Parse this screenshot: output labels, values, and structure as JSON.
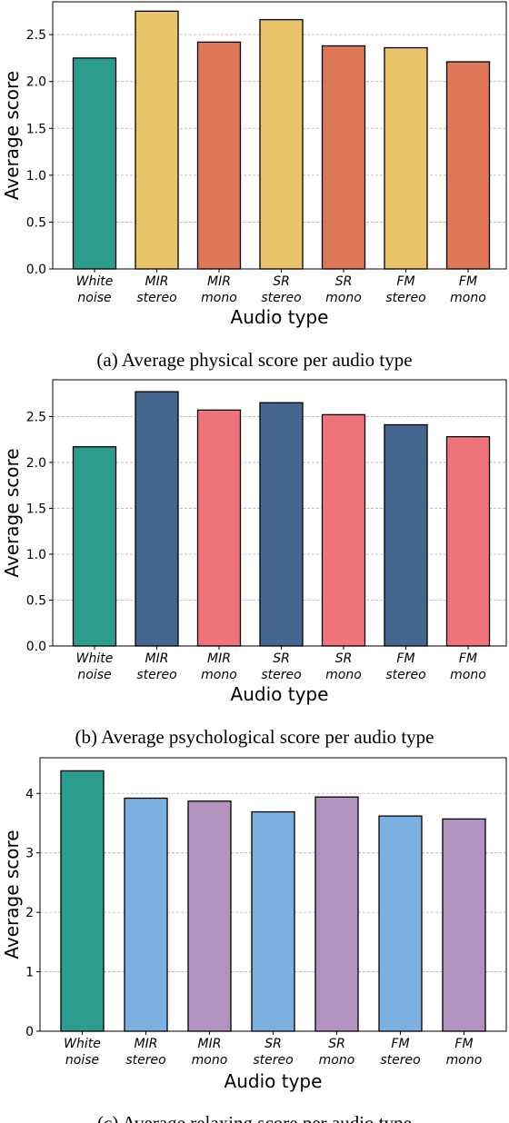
{
  "chart_data": [
    {
      "type": "bar",
      "caption": "(a) Average physical score per audio type",
      "xlabel": "Audio type",
      "ylabel": "Average score",
      "ylim": [
        0,
        2.85
      ],
      "yticks": [
        "0.0",
        "0.5",
        "1.0",
        "1.5",
        "2.0",
        "2.5"
      ],
      "ytick_values": [
        0,
        0.5,
        1.0,
        1.5,
        2.0,
        2.5
      ],
      "grid": "horizontal dashed",
      "categories": [
        [
          "White",
          "noise"
        ],
        [
          "MIR",
          "stereo"
        ],
        [
          "MIR",
          "mono"
        ],
        [
          "SR",
          "stereo"
        ],
        [
          "SR",
          "mono"
        ],
        [
          "FM",
          "stereo"
        ],
        [
          "FM",
          "mono"
        ]
      ],
      "values": [
        2.25,
        2.75,
        2.42,
        2.66,
        2.38,
        2.36,
        2.21
      ],
      "colors": [
        "#2a9d8f",
        "#e9c46a",
        "#de7758",
        "#e9c46a",
        "#de7758",
        "#e9c46a",
        "#de7758"
      ]
    },
    {
      "type": "bar",
      "caption": "(b) Average psychological score per audio type",
      "xlabel": "Audio type",
      "ylabel": "Average score",
      "ylim": [
        0,
        2.9
      ],
      "yticks": [
        "0.0",
        "0.5",
        "1.0",
        "1.5",
        "2.0",
        "2.5"
      ],
      "ytick_values": [
        0,
        0.5,
        1.0,
        1.5,
        2.0,
        2.5
      ],
      "grid": "horizontal dashed",
      "categories": [
        [
          "White",
          "noise"
        ],
        [
          "MIR",
          "stereo"
        ],
        [
          "MIR",
          "mono"
        ],
        [
          "SR",
          "stereo"
        ],
        [
          "SR",
          "mono"
        ],
        [
          "FM",
          "stereo"
        ],
        [
          "FM",
          "mono"
        ]
      ],
      "values": [
        2.17,
        2.77,
        2.57,
        2.65,
        2.52,
        2.41,
        2.28
      ],
      "colors": [
        "#2a9d8f",
        "#45668f",
        "#ee737a",
        "#45668f",
        "#ee737a",
        "#45668f",
        "#ee737a"
      ]
    },
    {
      "type": "bar",
      "caption": "(c) Average relaxing score per audio type",
      "xlabel": "Audio type",
      "ylabel": "Average score",
      "ylim": [
        0,
        4.6
      ],
      "yticks": [
        "0",
        "1",
        "2",
        "3",
        "4"
      ],
      "ytick_values": [
        0,
        1,
        2,
        3,
        4
      ],
      "grid": "horizontal dashed",
      "categories": [
        [
          "White",
          "noise"
        ],
        [
          "MIR",
          "stereo"
        ],
        [
          "MIR",
          "mono"
        ],
        [
          "SR",
          "stereo"
        ],
        [
          "SR",
          "mono"
        ],
        [
          "FM",
          "stereo"
        ],
        [
          "FM",
          "mono"
        ]
      ],
      "values": [
        4.38,
        3.92,
        3.87,
        3.69,
        3.94,
        3.62,
        3.57
      ],
      "colors": [
        "#2a9d8f",
        "#7cb0e0",
        "#b394c1",
        "#7cb0e0",
        "#b394c1",
        "#7cb0e0",
        "#b394c1"
      ]
    }
  ]
}
